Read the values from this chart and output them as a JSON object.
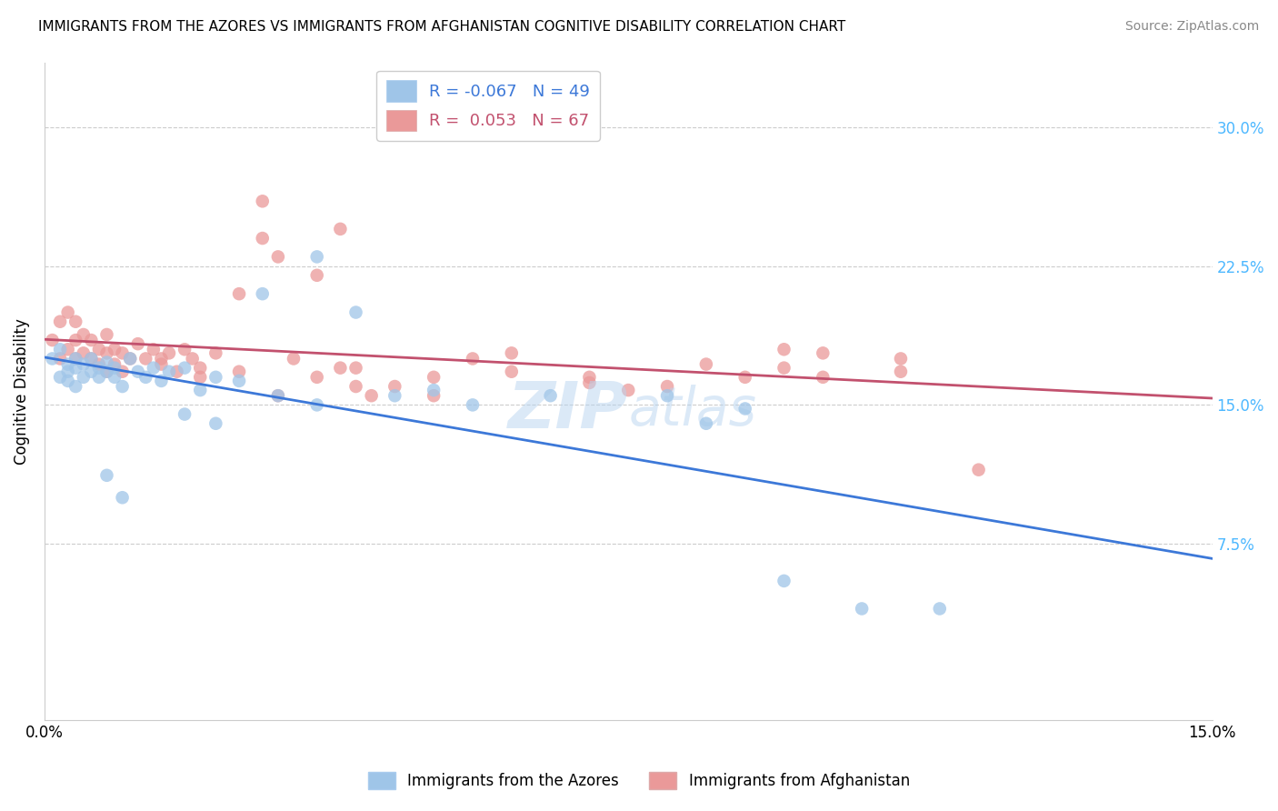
{
  "title": "IMMIGRANTS FROM THE AZORES VS IMMIGRANTS FROM AFGHANISTAN COGNITIVE DISABILITY CORRELATION CHART",
  "source": "Source: ZipAtlas.com",
  "ylabel": "Cognitive Disability",
  "xlim": [
    0.0,
    0.15
  ],
  "ylim": [
    -0.02,
    0.335
  ],
  "yticks": [
    0.075,
    0.15,
    0.225,
    0.3
  ],
  "ytick_labels": [
    "7.5%",
    "15.0%",
    "22.5%",
    "30.0%"
  ],
  "xticks": [
    0.0,
    0.025,
    0.05,
    0.075,
    0.1,
    0.125,
    0.15
  ],
  "xtick_labels": [
    "0.0%",
    "",
    "",
    "",
    "",
    "",
    "15.0%"
  ],
  "legend_azores": "Immigrants from the Azores",
  "legend_afghanistan": "Immigrants from Afghanistan",
  "R_azores": -0.067,
  "N_azores": 49,
  "R_afghanistan": 0.053,
  "N_afghanistan": 67,
  "color_azores": "#9fc5e8",
  "color_afghanistan": "#ea9999",
  "line_color_azores": "#3c78d8",
  "line_color_afghanistan": "#c2516e",
  "azores_x": [
    0.001,
    0.002,
    0.002,
    0.003,
    0.003,
    0.003,
    0.004,
    0.004,
    0.004,
    0.005,
    0.005,
    0.006,
    0.006,
    0.007,
    0.007,
    0.008,
    0.008,
    0.009,
    0.009,
    0.01,
    0.011,
    0.012,
    0.013,
    0.014,
    0.015,
    0.016,
    0.018,
    0.02,
    0.022,
    0.025,
    0.028,
    0.03,
    0.035,
    0.04,
    0.045,
    0.05,
    0.018,
    0.022,
    0.008,
    0.01,
    0.035,
    0.055,
    0.065,
    0.08,
    0.085,
    0.09,
    0.095,
    0.105,
    0.115
  ],
  "azores_y": [
    0.175,
    0.165,
    0.18,
    0.168,
    0.172,
    0.163,
    0.17,
    0.175,
    0.16,
    0.165,
    0.172,
    0.168,
    0.175,
    0.165,
    0.17,
    0.168,
    0.173,
    0.165,
    0.17,
    0.16,
    0.175,
    0.168,
    0.165,
    0.17,
    0.163,
    0.168,
    0.17,
    0.158,
    0.165,
    0.163,
    0.21,
    0.155,
    0.23,
    0.2,
    0.155,
    0.158,
    0.145,
    0.14,
    0.112,
    0.1,
    0.15,
    0.15,
    0.155,
    0.155,
    0.14,
    0.148,
    0.055,
    0.04,
    0.04
  ],
  "afghanistan_x": [
    0.001,
    0.002,
    0.002,
    0.003,
    0.003,
    0.004,
    0.004,
    0.004,
    0.005,
    0.005,
    0.006,
    0.006,
    0.007,
    0.007,
    0.008,
    0.008,
    0.008,
    0.009,
    0.009,
    0.01,
    0.01,
    0.011,
    0.012,
    0.013,
    0.014,
    0.015,
    0.016,
    0.017,
    0.018,
    0.019,
    0.02,
    0.022,
    0.025,
    0.028,
    0.03,
    0.032,
    0.035,
    0.038,
    0.04,
    0.042,
    0.045,
    0.05,
    0.055,
    0.06,
    0.07,
    0.075,
    0.08,
    0.09,
    0.095,
    0.1,
    0.11,
    0.038,
    0.028,
    0.025,
    0.03,
    0.035,
    0.02,
    0.015,
    0.05,
    0.04,
    0.06,
    0.07,
    0.085,
    0.095,
    0.1,
    0.11,
    0.12
  ],
  "afghanistan_y": [
    0.185,
    0.175,
    0.195,
    0.18,
    0.2,
    0.175,
    0.185,
    0.195,
    0.178,
    0.188,
    0.175,
    0.185,
    0.172,
    0.18,
    0.168,
    0.178,
    0.188,
    0.172,
    0.18,
    0.168,
    0.178,
    0.175,
    0.183,
    0.175,
    0.18,
    0.172,
    0.178,
    0.168,
    0.18,
    0.175,
    0.17,
    0.178,
    0.168,
    0.26,
    0.155,
    0.175,
    0.165,
    0.245,
    0.17,
    0.155,
    0.16,
    0.165,
    0.175,
    0.168,
    0.165,
    0.158,
    0.16,
    0.165,
    0.17,
    0.165,
    0.175,
    0.17,
    0.24,
    0.21,
    0.23,
    0.22,
    0.165,
    0.175,
    0.155,
    0.16,
    0.178,
    0.162,
    0.172,
    0.18,
    0.178,
    0.168,
    0.115
  ]
}
